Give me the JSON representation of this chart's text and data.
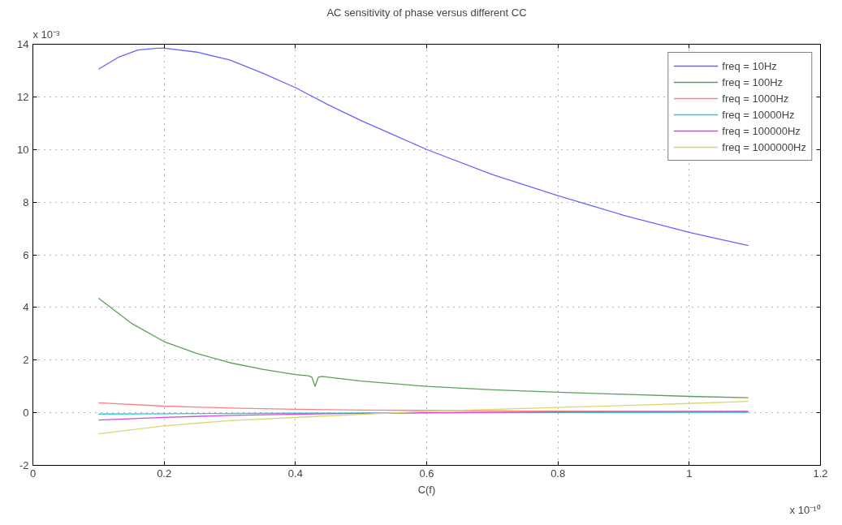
{
  "chart_data": {
    "type": "line",
    "title": "AC sensitivity of phase versus different CC",
    "xlabel": "C(f)",
    "annotations": [
      "x 10⁻³",
      "x 10⁻¹⁰"
    ],
    "xlim": [
      0,
      1.2
    ],
    "xticks": [
      0,
      0.2,
      0.4,
      0.6,
      0.8,
      1,
      1.2
    ],
    "ylim": [
      -2,
      14
    ],
    "yticks": [
      -2,
      0,
      2,
      4,
      6,
      8,
      10,
      12,
      14
    ],
    "grid": true,
    "legend": "top right",
    "line_style": "solid",
    "marker": "none",
    "series": [
      {
        "name": "freq = 10Hz",
        "color": "#6666ff",
        "x": [
          0.1,
          0.13,
          0.16,
          0.19,
          0.2,
          0.25,
          0.3,
          0.35,
          0.4,
          0.45,
          0.5,
          0.55,
          0.6,
          0.7,
          0.8,
          0.9,
          1.0,
          1.09
        ],
        "values": [
          13.05,
          13.5,
          13.78,
          13.85,
          13.85,
          13.7,
          13.4,
          12.9,
          12.35,
          11.7,
          11.1,
          10.55,
          10.0,
          9.05,
          8.25,
          7.5,
          6.85,
          6.35
        ]
      },
      {
        "name": "freq = 100Hz",
        "color": "#5aa05a",
        "x": [
          0.1,
          0.15,
          0.2,
          0.25,
          0.3,
          0.35,
          0.4,
          0.42,
          0.425,
          0.43,
          0.435,
          0.44,
          0.5,
          0.6,
          0.7,
          0.8,
          0.9,
          1.0,
          1.09
        ],
        "values": [
          4.35,
          3.4,
          2.7,
          2.25,
          1.9,
          1.65,
          1.45,
          1.4,
          1.35,
          1.0,
          1.35,
          1.38,
          1.2,
          1.0,
          0.87,
          0.78,
          0.7,
          0.62,
          0.57
        ]
      },
      {
        "name": "freq = 1000Hz",
        "color": "#ff8080",
        "x": [
          0.1,
          0.2,
          0.3,
          0.4,
          0.5,
          0.7,
          0.9,
          1.09
        ],
        "values": [
          0.38,
          0.25,
          0.18,
          0.13,
          0.1,
          0.07,
          0.05,
          0.04
        ]
      },
      {
        "name": "freq = 10000Hz",
        "color": "#33cccc",
        "x": [
          0.1,
          0.4,
          0.7,
          1.09
        ],
        "values": [
          -0.05,
          -0.02,
          0.0,
          0.02
        ]
      },
      {
        "name": "freq = 100000Hz",
        "color": "#dd44dd",
        "x": [
          0.1,
          0.2,
          0.3,
          0.45,
          0.6,
          0.8,
          1.09
        ],
        "values": [
          -0.28,
          -0.18,
          -0.1,
          -0.04,
          0.0,
          0.03,
          0.05
        ]
      },
      {
        "name": "freq = 1000000Hz",
        "color": "#d8d870",
        "x": [
          0.1,
          0.2,
          0.3,
          0.45,
          0.6,
          0.8,
          1.0,
          1.09
        ],
        "values": [
          -0.8,
          -0.5,
          -0.3,
          -0.12,
          0.05,
          0.2,
          0.35,
          0.43
        ]
      }
    ]
  }
}
